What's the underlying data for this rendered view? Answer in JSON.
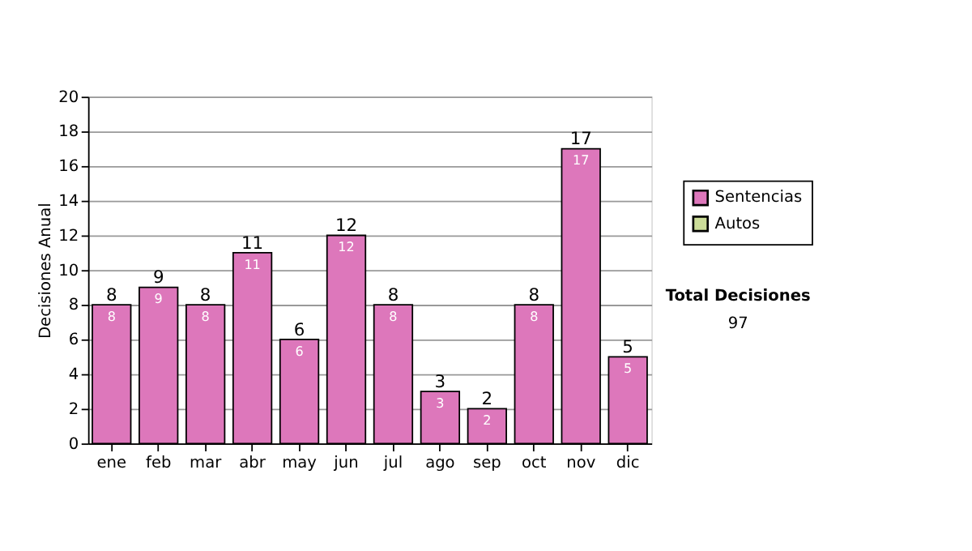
{
  "chart_data": {
    "type": "bar",
    "stacked": true,
    "ylabel": "Decisiones Anual",
    "categories": [
      "ene",
      "feb",
      "mar",
      "abr",
      "may",
      "jun",
      "jul",
      "ago",
      "sep",
      "oct",
      "nov",
      "dic"
    ],
    "series": [
      {
        "name": "Sentencias",
        "color": "#dd77bb",
        "values": [
          8,
          9,
          8,
          11,
          6,
          12,
          8,
          3,
          2,
          8,
          17,
          5
        ],
        "value_labels": [
          "8",
          "9",
          "8",
          "11",
          "6",
          "12",
          "8",
          "3",
          "2",
          "8",
          "17",
          "5"
        ]
      },
      {
        "name": "Autos",
        "color": "#ccdd99",
        "values": [
          0,
          0,
          0,
          0,
          0,
          0,
          0,
          0,
          0,
          0,
          0,
          0
        ]
      }
    ],
    "totals": [
      "8",
      "9",
      "8",
      "11",
      "6",
      "12",
      "8",
      "3",
      "2",
      "8",
      "17",
      "5"
    ],
    "ylim": [
      0,
      20
    ],
    "yticks": [
      0,
      2,
      4,
      6,
      8,
      10,
      12,
      14,
      16,
      18,
      20
    ],
    "grid": "y",
    "legend": "right",
    "annotations": [
      "Total Decisiones",
      "97"
    ]
  }
}
